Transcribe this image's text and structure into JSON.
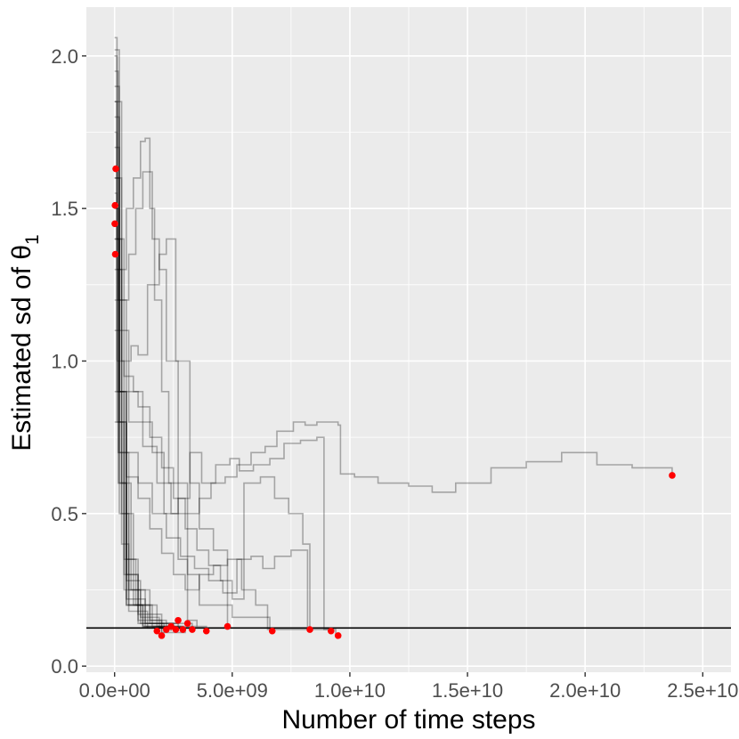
{
  "chart_data": {
    "type": "line",
    "xlabel": "Number of time steps",
    "ylabel": {
      "main": "Estimated sd of θ",
      "subscript": "1"
    },
    "xlim": [
      -1200000000.0,
      26200000000.0
    ],
    "ylim": [
      -0.02,
      2.16
    ],
    "x_ticks": [
      {
        "value": 0,
        "label": "0.0e+00"
      },
      {
        "value": 5000000000.0,
        "label": "5.0e+09"
      },
      {
        "value": 10000000000.0,
        "label": "1.0e+10"
      },
      {
        "value": 15000000000.0,
        "label": "1.5e+10"
      },
      {
        "value": 20000000000.0,
        "label": "2.0e+10"
      },
      {
        "value": 25000000000.0,
        "label": "2.5e+10"
      }
    ],
    "y_ticks": [
      {
        "value": 0,
        "label": "0.0"
      },
      {
        "value": 0.5,
        "label": "0.5"
      },
      {
        "value": 1,
        "label": "1.0"
      },
      {
        "value": 1.5,
        "label": "1.5"
      },
      {
        "value": 2,
        "label": "2.0"
      }
    ],
    "grid": true,
    "reference_line": {
      "y": 0.125,
      "color": "#000000"
    },
    "colors": {
      "panel": "#ebebeb",
      "grid": "#ffffff",
      "line": "#000000",
      "endpoint": "#ff0000",
      "tick_text": "#4d4d4d"
    },
    "series": [
      {
        "values": [
          [
            0,
            2.06
          ],
          [
            100000000.0,
            1.3
          ],
          [
            300000000.0,
            0.4
          ],
          [
            600000000.0,
            0.2
          ],
          [
            1000000000.0,
            0.15
          ],
          [
            2000000000.0,
            0.11
          ],
          [
            3000000000.0,
            0.115
          ]
        ]
      },
      {
        "values": [
          [
            0,
            2.0
          ],
          [
            100000000.0,
            1.5
          ],
          [
            200000000.0,
            0.9
          ],
          [
            500000000.0,
            0.35
          ],
          [
            1000000000.0,
            0.2
          ],
          [
            1500000000.0,
            0.14
          ],
          [
            2500000000.0,
            0.12
          ]
        ]
      },
      {
        "values": [
          [
            0,
            1.95
          ],
          [
            150000000.0,
            1.2
          ],
          [
            300000000.0,
            0.6
          ],
          [
            700000000.0,
            0.25
          ],
          [
            1500000000.0,
            0.15
          ],
          [
            2200000000.0,
            0.12
          ]
        ]
      },
      {
        "values": [
          [
            0,
            1.9
          ],
          [
            200000000.0,
            0.8
          ],
          [
            500000000.0,
            0.3
          ],
          [
            1000000000.0,
            0.17
          ],
          [
            2000000000.0,
            0.125
          ],
          [
            3200000000.0,
            0.13
          ]
        ]
      },
      {
        "values": [
          [
            0,
            1.85
          ],
          [
            100000000.0,
            1.0
          ],
          [
            400000000.0,
            0.35
          ],
          [
            900000000.0,
            0.2
          ],
          [
            1800000000.0,
            0.13
          ],
          [
            2800000000.0,
            0.125
          ]
        ]
      },
      {
        "values": [
          [
            0,
            1.8
          ],
          [
            200000000.0,
            0.7
          ],
          [
            600000000.0,
            0.25
          ],
          [
            1300000000.0,
            0.14
          ],
          [
            2100000000.0,
            0.11
          ]
        ]
      },
      {
        "values": [
          [
            0,
            1.75
          ],
          [
            100000000.0,
            1.4
          ],
          [
            300000000.0,
            0.5
          ],
          [
            800000000.0,
            0.2
          ],
          [
            1600000000.0,
            0.13
          ],
          [
            2400000000.0,
            0.115
          ]
        ]
      },
      {
        "values": [
          [
            0,
            1.7
          ],
          [
            200000000.0,
            0.9
          ],
          [
            500000000.0,
            0.28
          ],
          [
            1100000000.0,
            0.16
          ],
          [
            1900000000.0,
            0.12
          ]
        ]
      },
      {
        "values": [
          [
            0,
            1.6
          ],
          [
            200000000.0,
            0.6
          ],
          [
            500000000.0,
            0.2
          ],
          [
            1200000000.0,
            0.13
          ],
          [
            3900000000.0,
            0.115
          ]
        ]
      },
      {
        "values": [
          [
            0,
            1.55
          ],
          [
            100000000.0,
            0.9
          ],
          [
            400000000.0,
            0.3
          ],
          [
            1000000000.0,
            0.14
          ],
          [
            2700000000.0,
            0.12
          ]
        ]
      },
      {
        "values": [
          [
            0,
            1.5
          ],
          [
            150000000.0,
            0.7
          ],
          [
            500000000.0,
            0.22
          ],
          [
            1300000000.0,
            0.13
          ],
          [
            2900000000.0,
            0.12
          ]
        ]
      },
      {
        "values": [
          [
            0,
            1.45
          ],
          [
            100000000.0,
            0.8
          ],
          [
            400000000.0,
            0.25
          ],
          [
            1100000000.0,
            0.14
          ],
          [
            3300000000.0,
            0.115
          ]
        ]
      },
      {
        "values": [
          [
            0,
            1.4
          ],
          [
            200000000.0,
            0.5
          ],
          [
            600000000.0,
            0.18
          ],
          [
            1400000000.0,
            0.125
          ],
          [
            2600000000.0,
            0.13
          ]
        ]
      },
      {
        "values": [
          [
            0,
            1.3
          ],
          [
            150000000.0,
            0.6
          ],
          [
            500000000.0,
            0.2
          ],
          [
            1200000000.0,
            0.13
          ],
          [
            2000000000.0,
            0.1
          ]
        ]
      },
      {
        "values": [
          [
            0,
            2.02
          ],
          [
            200000000.0,
            1.3
          ],
          [
            500000000.0,
            1.5
          ],
          [
            800000000.0,
            1.6
          ],
          [
            1100000000.0,
            1.72
          ],
          [
            1300000000.0,
            1.73
          ],
          [
            1500000000.0,
            1.5
          ],
          [
            1700000000.0,
            1.2
          ],
          [
            2000000000.0,
            0.9
          ],
          [
            2300000000.0,
            0.6
          ],
          [
            2700000000.0,
            0.35
          ],
          [
            3100000000.0,
            0.15
          ],
          [
            3500000000.0,
            0.13
          ]
        ]
      },
      {
        "values": [
          [
            0,
            1.85
          ],
          [
            300000000.0,
            1.2
          ],
          [
            600000000.0,
            1.35
          ],
          [
            900000000.0,
            1.5
          ],
          [
            1200000000.0,
            1.62
          ],
          [
            1600000000.0,
            1.4
          ],
          [
            1900000000.0,
            1.3
          ],
          [
            2200000000.0,
            1.0
          ],
          [
            2700000000.0,
            0.6
          ],
          [
            3100000000.0,
            0.3
          ],
          [
            3600000000.0,
            0.2
          ],
          [
            5000000000.0,
            0.16
          ],
          [
            6600000000.0,
            0.12
          ]
        ]
      },
      {
        "values": [
          [
            0,
            1.6
          ],
          [
            300000000.0,
            1.0
          ],
          [
            700000000.0,
            1.05
          ],
          [
            1000000000.0,
            1.02
          ],
          [
            1400000000.0,
            1.25
          ],
          [
            1900000000.0,
            1.35
          ],
          [
            2200000000.0,
            1.4
          ],
          [
            2600000000.0,
            1.0
          ],
          [
            3200000000.0,
            0.6
          ],
          [
            3600000000.0,
            0.45
          ],
          [
            4200000000.0,
            0.38
          ],
          [
            4800000000.0,
            0.13
          ]
        ]
      },
      {
        "values": [
          [
            0,
            1.4
          ],
          [
            400000000.0,
            0.95
          ],
          [
            800000000.0,
            0.9
          ],
          [
            1200000000.0,
            0.8
          ],
          [
            1600000000.0,
            0.7
          ],
          [
            2100000000.0,
            0.5
          ],
          [
            2700000000.0,
            0.55
          ],
          [
            3200000000.0,
            0.7
          ],
          [
            3700000000.0,
            0.6
          ],
          [
            4300000000.0,
            0.66
          ],
          [
            4900000000.0,
            0.68
          ],
          [
            5300000000.0,
            0.64
          ],
          [
            5900000000.0,
            0.66
          ],
          [
            6600000000.0,
            0.68
          ],
          [
            7200000000.0,
            0.73
          ],
          [
            7900000000.0,
            0.74
          ],
          [
            8600000000.0,
            0.75
          ],
          [
            8900000000.0,
            0.12
          ],
          [
            9400000000.0,
            0.1
          ]
        ]
      },
      {
        "values": [
          [
            0,
            1.2
          ],
          [
            500000000.0,
            0.9
          ],
          [
            1000000000.0,
            0.85
          ],
          [
            1500000000.0,
            0.75
          ],
          [
            2000000000.0,
            0.65
          ],
          [
            2500000000.0,
            0.55
          ],
          [
            3000000000.0,
            0.5
          ],
          [
            3600000000.0,
            0.55
          ],
          [
            4100000000.0,
            0.6
          ],
          [
            4700000000.0,
            0.62
          ],
          [
            5200000000.0,
            0.66
          ],
          [
            5800000000.0,
            0.7
          ],
          [
            6400000000.0,
            0.72
          ],
          [
            6900000000.0,
            0.77
          ],
          [
            7600000000.0,
            0.8
          ],
          [
            8100000000.0,
            0.79
          ],
          [
            8600000000.0,
            0.8
          ],
          [
            9500000000.0,
            0.79
          ],
          [
            9600000000.0,
            0.63
          ],
          [
            10200000000.0,
            0.62
          ],
          [
            11200000000.0,
            0.6
          ],
          [
            12500000000.0,
            0.59
          ],
          [
            13500000000.0,
            0.57
          ],
          [
            14500000000.0,
            0.6
          ],
          [
            16000000000.0,
            0.65
          ],
          [
            17500000000.0,
            0.67
          ],
          [
            19000000000.0,
            0.7
          ],
          [
            20500000000.0,
            0.66
          ],
          [
            22000000000.0,
            0.65
          ],
          [
            23700000000.0,
            0.63
          ]
        ]
      },
      {
        "values": [
          [
            0,
            1.1
          ],
          [
            600000000.0,
            0.8
          ],
          [
            1200000000.0,
            0.72
          ],
          [
            1800000000.0,
            0.6
          ],
          [
            2400000000.0,
            0.5
          ],
          [
            3000000000.0,
            0.45
          ],
          [
            3500000000.0,
            0.38
          ],
          [
            4000000000.0,
            0.33
          ],
          [
            4500000000.0,
            0.28
          ],
          [
            5000000000.0,
            0.22
          ],
          [
            5500000000.0,
            0.6
          ],
          [
            6200000000.0,
            0.62
          ],
          [
            6800000000.0,
            0.55
          ],
          [
            7400000000.0,
            0.5
          ],
          [
            8000000000.0,
            0.4
          ],
          [
            8300000000.0,
            0.12
          ]
        ]
      },
      {
        "values": [
          [
            0,
            0.9
          ],
          [
            500000000.0,
            0.7
          ],
          [
            1000000000.0,
            0.6
          ],
          [
            1600000000.0,
            0.5
          ],
          [
            2200000000.0,
            0.42
          ],
          [
            2800000000.0,
            0.36
          ],
          [
            3400000000.0,
            0.32
          ],
          [
            4000000000.0,
            0.28
          ],
          [
            4600000000.0,
            0.24
          ],
          [
            5200000000.0,
            0.35
          ],
          [
            5800000000.0,
            0.36
          ],
          [
            6300000000.0,
            0.32
          ],
          [
            6800000000.0,
            0.36
          ],
          [
            7500000000.0,
            0.38
          ],
          [
            8200000000.0,
            0.12
          ]
        ]
      },
      {
        "values": [
          [
            0,
            0.8
          ],
          [
            500000000.0,
            0.62
          ],
          [
            1000000000.0,
            0.55
          ],
          [
            1500000000.0,
            0.45
          ],
          [
            2000000000.0,
            0.37
          ],
          [
            2500000000.0,
            0.3
          ],
          [
            3000000000.0,
            0.25
          ],
          [
            3600000000.0,
            0.3
          ],
          [
            4200000000.0,
            0.33
          ],
          [
            4800000000.0,
            0.35
          ],
          [
            5400000000.0,
            0.25
          ],
          [
            6000000000.0,
            0.2
          ],
          [
            6500000000.0,
            0.12
          ],
          [
            9100000000.0,
            0.12
          ]
        ]
      }
    ],
    "endpoints": [
      {
        "x": 50000000.0,
        "y": 1.63
      },
      {
        "x": 20000000.0,
        "y": 1.51
      },
      {
        "x": 10000000.0,
        "y": 1.45
      },
      {
        "x": 30000000.0,
        "y": 1.35
      },
      {
        "x": 1800000000.0,
        "y": 0.115
      },
      {
        "x": 2000000000.0,
        "y": 0.1
      },
      {
        "x": 2200000000.0,
        "y": 0.12
      },
      {
        "x": 2400000000.0,
        "y": 0.13
      },
      {
        "x": 2600000000.0,
        "y": 0.12
      },
      {
        "x": 2700000000.0,
        "y": 0.15
      },
      {
        "x": 2900000000.0,
        "y": 0.12
      },
      {
        "x": 3100000000.0,
        "y": 0.14
      },
      {
        "x": 3300000000.0,
        "y": 0.12
      },
      {
        "x": 3900000000.0,
        "y": 0.115
      },
      {
        "x": 4800000000.0,
        "y": 0.13
      },
      {
        "x": 6700000000.0,
        "y": 0.115
      },
      {
        "x": 8300000000.0,
        "y": 0.12
      },
      {
        "x": 9200000000.0,
        "y": 0.115
      },
      {
        "x": 9500000000.0,
        "y": 0.1
      },
      {
        "x": 23700000000.0,
        "y": 0.625
      }
    ]
  }
}
